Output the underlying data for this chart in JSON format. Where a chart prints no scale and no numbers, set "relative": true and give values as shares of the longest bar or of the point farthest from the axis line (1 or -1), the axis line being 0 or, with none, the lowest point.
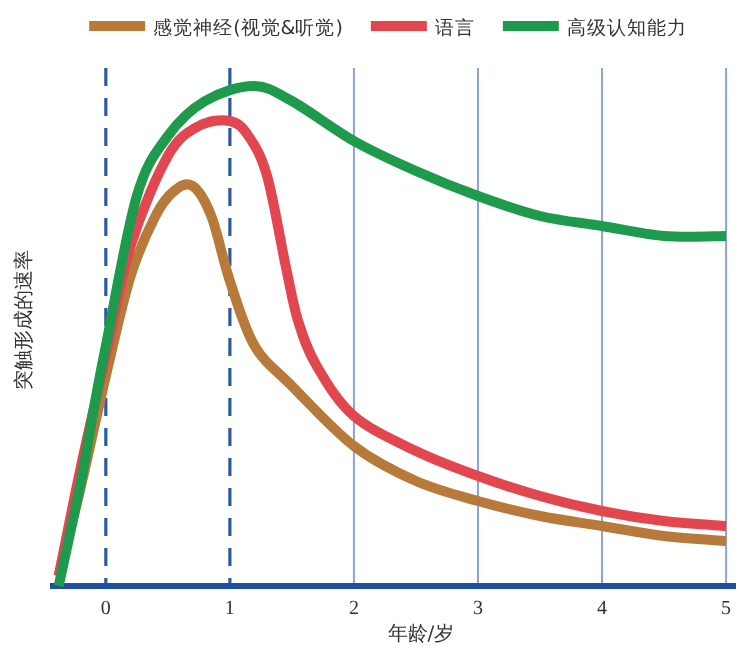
{
  "chart_data": {
    "type": "line",
    "relative": true,
    "xlabel": "年龄/岁",
    "ylabel": "突触形成的速率",
    "legend": "top",
    "line_style": "solid",
    "xlim": [
      -0.45,
      5.08
    ],
    "xticks": [
      0,
      1,
      2,
      3,
      4,
      5
    ],
    "series": [
      {
        "name": "感觉神经(视觉&听觉)",
        "color": "#b87a3a",
        "x": [
          -0.38,
          -0.2,
          0,
          0.2,
          0.4,
          0.55,
          0.7,
          0.85,
          1,
          1.2,
          1.5,
          2,
          2.5,
          3,
          3.5,
          4,
          4.5,
          5
        ],
        "values": [
          0.02,
          0.2,
          0.42,
          0.62,
          0.74,
          0.79,
          0.8,
          0.74,
          0.61,
          0.48,
          0.4,
          0.28,
          0.21,
          0.17,
          0.14,
          0.12,
          0.1,
          0.09
        ]
      },
      {
        "name": "语言",
        "color": "#e2474f",
        "x": [
          -0.38,
          -0.2,
          0,
          0.2,
          0.5,
          0.75,
          1,
          1.15,
          1.3,
          1.45,
          1.55,
          1.7,
          2,
          2.5,
          3,
          3.5,
          4,
          4.5,
          5
        ],
        "values": [
          0.02,
          0.24,
          0.46,
          0.68,
          0.86,
          0.92,
          0.93,
          0.9,
          0.82,
          0.64,
          0.53,
          0.44,
          0.34,
          0.27,
          0.22,
          0.18,
          0.15,
          0.13,
          0.12
        ]
      },
      {
        "name": "高级认知能力",
        "color": "#1e9a4c",
        "x": [
          -0.38,
          -0.2,
          -0.1,
          0,
          0.25,
          0.5,
          0.8,
          1.19,
          1.5,
          2,
          2.5,
          3,
          3.5,
          4,
          4.5,
          5
        ],
        "values": [
          0,
          0.21,
          0.35,
          0.48,
          0.78,
          0.9,
          0.97,
          1,
          0.97,
          0.89,
          0.83,
          0.78,
          0.74,
          0.72,
          0.7,
          0.7
        ]
      }
    ],
    "ref_lines": [
      {
        "axis": "x",
        "value": 0,
        "color": "#2c5aa0",
        "line_style": "dashed"
      },
      {
        "axis": "x",
        "value": 1,
        "color": "#2c5aa0",
        "line_style": "dashed"
      },
      {
        "axis": "x",
        "value": 2,
        "color": "#8aa4d6",
        "line_style": "solid"
      },
      {
        "axis": "x",
        "value": 3,
        "color": "#8aa4d6",
        "line_style": "solid"
      },
      {
        "axis": "x",
        "value": 4,
        "color": "#8aa4d6",
        "line_style": "solid"
      },
      {
        "axis": "x",
        "value": 5,
        "color": "#8aa4d6",
        "line_style": "solid"
      }
    ]
  }
}
